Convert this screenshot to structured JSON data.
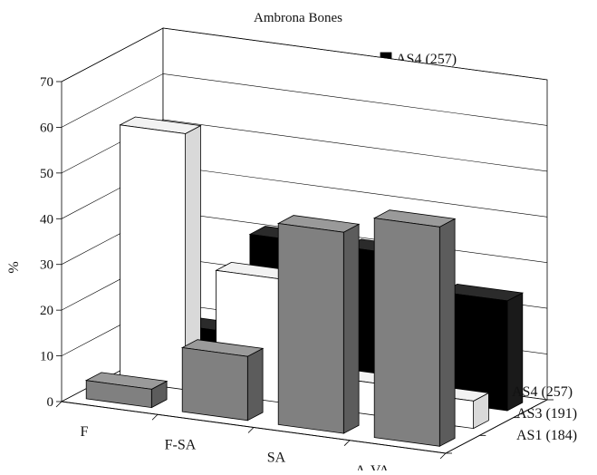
{
  "chart_data": {
    "type": "bar",
    "title": "Ambrona Bones",
    "xlabel": "",
    "ylabel": "%",
    "categories": [
      "F",
      "F-SA",
      "SA",
      "A-VA"
    ],
    "series": [
      {
        "name": "AS1 (184)",
        "values": [
          4,
          14,
          44,
          48
        ],
        "color": "#808080"
      },
      {
        "name": "AS3 (191)",
        "values": [
          56,
          27,
          7,
          6
        ],
        "color": "#ffffff"
      },
      {
        "name": "AS4 (257)",
        "values": [
          9,
          31,
          31,
          24
        ],
        "color": "#000000"
      }
    ],
    "depth_labels": [
      "AS4 (257)",
      "AS3 (191)",
      "AS1 (184)"
    ],
    "yticks": [
      0,
      10,
      20,
      30,
      40,
      50,
      60,
      70
    ],
    "ylim": [
      0,
      70
    ],
    "grid": true,
    "legend_position": "top-center",
    "style": "3d-clustered-column"
  }
}
